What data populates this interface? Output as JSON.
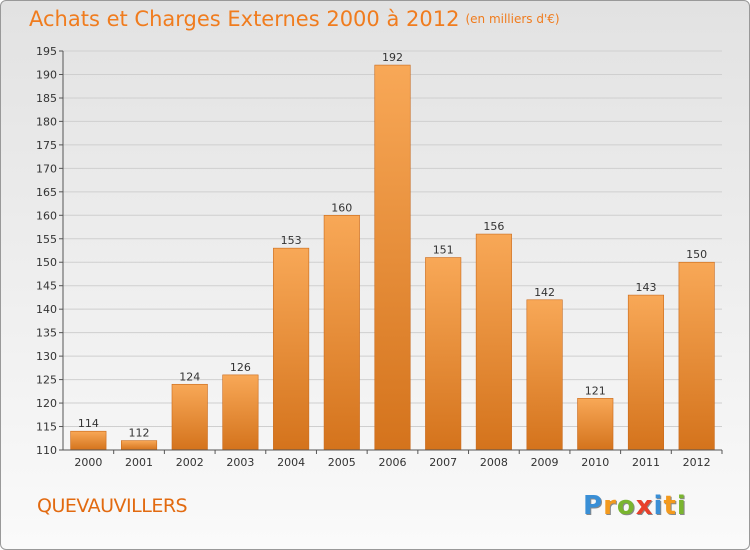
{
  "header": {
    "title": "Achats et Charges Externes 2000 à 2012",
    "subtitle": "(en milliers d'€)"
  },
  "footer": {
    "place": "QUEVAUVILLERS",
    "brand": "Proxiti",
    "brand_letters": [
      {
        "char": "P",
        "color": "#3a8fd6"
      },
      {
        "char": "r",
        "color": "#f39a1e"
      },
      {
        "char": "o",
        "color": "#7ab52f"
      },
      {
        "char": "x",
        "color": "#e8402b"
      },
      {
        "char": "i",
        "color": "#3a8fd6"
      },
      {
        "char": "t",
        "color": "#f39a1e"
      },
      {
        "char": "i",
        "color": "#7ab52f"
      }
    ]
  },
  "chart_data": {
    "type": "bar",
    "title": "Achats et Charges Externes 2000 à 2012",
    "subtitle": "(en milliers d'€)",
    "categories": [
      "2000",
      "2001",
      "2002",
      "2003",
      "2004",
      "2005",
      "2006",
      "2007",
      "2008",
      "2009",
      "2010",
      "2011",
      "2012"
    ],
    "values": [
      114,
      112,
      124,
      126,
      153,
      160,
      192,
      151,
      156,
      142,
      121,
      143,
      150
    ],
    "ylim": [
      110,
      195
    ],
    "yticks": [
      110,
      115,
      120,
      125,
      130,
      135,
      140,
      145,
      150,
      155,
      160,
      165,
      170,
      175,
      180,
      185,
      190,
      195
    ],
    "grid": true,
    "bar_color_top": "#f8a857",
    "bar_color_bottom": "#d4731c"
  }
}
